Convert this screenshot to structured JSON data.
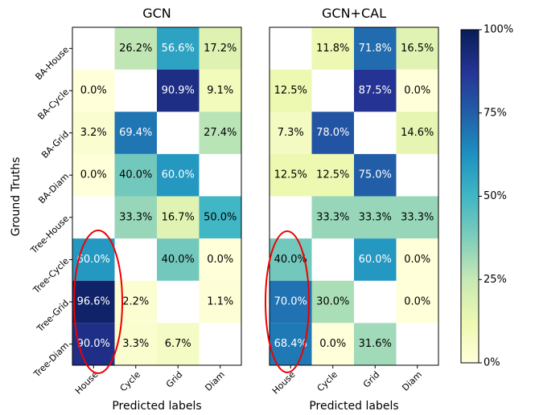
{
  "chart_data": {
    "type": "heatmap",
    "colormap": "YlGnBu",
    "y_label": "Ground Truths",
    "y_categories": [
      "BA-House",
      "BA-Cycle",
      "BA-Grid",
      "BA-Diam",
      "Tree-House",
      "Tree-Cycle",
      "Tree-Grid",
      "Tree-Diam"
    ],
    "panels": [
      {
        "title": "GCN",
        "x_label": "Predicted labels",
        "categories": [
          "House",
          "Cycle",
          "Grid",
          "Diam"
        ],
        "values": [
          [
            null,
            26.2,
            56.6,
            17.2
          ],
          [
            0.0,
            null,
            90.9,
            9.1
          ],
          [
            3.2,
            69.4,
            null,
            27.4
          ],
          [
            0.0,
            40.0,
            60.0,
            null
          ],
          [
            null,
            33.3,
            16.7,
            50.0
          ],
          [
            60.0,
            null,
            40.0,
            0.0
          ],
          [
            96.6,
            2.2,
            null,
            1.1
          ],
          [
            90.0,
            3.3,
            6.7,
            null
          ]
        ],
        "value_labels": [
          [
            null,
            "26.2%",
            "56.6%",
            "17.2%"
          ],
          [
            "0.0%",
            null,
            "90.9%",
            "9.1%"
          ],
          [
            "3.2%",
            "69.4%",
            null,
            "27.4%"
          ],
          [
            "0.0%",
            "40.0%",
            "60.0%",
            null
          ],
          [
            null,
            "33.3%",
            "16.7%",
            "50.0%"
          ],
          [
            "60.0%",
            null,
            "40.0%",
            "0.0%"
          ],
          [
            "96.6%",
            "2.2%",
            null,
            "1.1%"
          ],
          [
            "90.0%",
            "3.3%",
            "6.7%",
            null
          ]
        ]
      },
      {
        "title": "GCN+CAL",
        "x_label": "Predicted labels",
        "categories": [
          "House",
          "Cycle",
          "Grid",
          "Diam"
        ],
        "values": [
          [
            null,
            11.8,
            71.8,
            16.5
          ],
          [
            12.5,
            null,
            87.5,
            0.0
          ],
          [
            7.3,
            78.0,
            null,
            14.6
          ],
          [
            12.5,
            12.5,
            75.0,
            null
          ],
          [
            null,
            33.3,
            33.3,
            33.3
          ],
          [
            40.0,
            null,
            60.0,
            0.0
          ],
          [
            70.0,
            30.0,
            null,
            0.0
          ],
          [
            68.4,
            0.0,
            31.6,
            null
          ]
        ],
        "value_labels": [
          [
            null,
            "11.8%",
            "71.8%",
            "16.5%"
          ],
          [
            "12.5%",
            null,
            "87.5%",
            "0.0%"
          ],
          [
            "7.3%",
            "78.0%",
            null,
            "14.6%"
          ],
          [
            "12.5%",
            "12.5%",
            "75.0%",
            null
          ],
          [
            null,
            "33.3%",
            "33.3%",
            "33.3%"
          ],
          [
            "40.0%",
            null,
            "60.0%",
            "0.0%"
          ],
          [
            "70.0%",
            "30.0%",
            null,
            "0.0%"
          ],
          [
            "68.4%",
            "0.0%",
            "31.6%",
            null
          ]
        ]
      }
    ],
    "colorbar": {
      "lim": [
        0,
        100
      ],
      "ticks": [
        {
          "value": 0,
          "label": "0%"
        },
        {
          "value": 25,
          "label": "25%"
        },
        {
          "value": 50,
          "label": "50%"
        },
        {
          "value": 75,
          "label": "75%"
        },
        {
          "value": 100,
          "label": "100%"
        }
      ]
    }
  }
}
